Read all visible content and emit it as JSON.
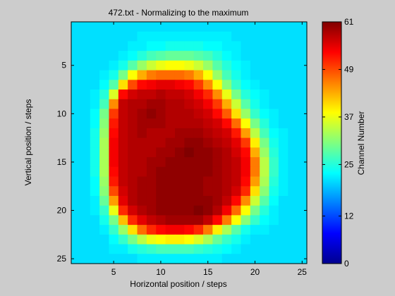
{
  "chart_data": {
    "type": "heatmap",
    "title": "472.txt - Normalizing to the maximum",
    "xlabel": "Horizontal position / steps",
    "ylabel": "Vertical position / steps",
    "colorbar_label": "Channel Number",
    "x_ticks": [
      5,
      10,
      15,
      20,
      25
    ],
    "y_ticks": [
      5,
      10,
      15,
      20,
      25
    ],
    "colorbar_ticks": [
      0,
      12,
      25,
      37,
      49,
      61
    ],
    "clim": [
      0,
      61
    ],
    "grid_cols": 25,
    "grid_rows": 25,
    "colormap": "jet",
    "grid": false,
    "values": [
      [
        21,
        21,
        21,
        21,
        21,
        21,
        21,
        21,
        21,
        21,
        21,
        21,
        21,
        21,
        21,
        21,
        21,
        21,
        21,
        21,
        21,
        21,
        21,
        21,
        21
      ],
      [
        21,
        21,
        21,
        21,
        21,
        21,
        21,
        22,
        22,
        22,
        22,
        22,
        22,
        22,
        22,
        22,
        22,
        21,
        21,
        21,
        21,
        21,
        21,
        21,
        21
      ],
      [
        21,
        21,
        21,
        21,
        21,
        21,
        22,
        22,
        23,
        23,
        24,
        24,
        24,
        24,
        23,
        23,
        22,
        22,
        21,
        21,
        21,
        21,
        21,
        21,
        21
      ],
      [
        21,
        21,
        21,
        21,
        21,
        22,
        23,
        25,
        27,
        28,
        29,
        29,
        29,
        28,
        27,
        25,
        23,
        22,
        21,
        21,
        21,
        21,
        21,
        21,
        21
      ],
      [
        21,
        21,
        21,
        21,
        22,
        24,
        28,
        32,
        35,
        37,
        38,
        38,
        37,
        35,
        32,
        28,
        25,
        23,
        22,
        21,
        21,
        21,
        21,
        21,
        21
      ],
      [
        21,
        21,
        21,
        22,
        24,
        30,
        38,
        43,
        46,
        47,
        47,
        47,
        46,
        43,
        38,
        32,
        27,
        24,
        22,
        21,
        21,
        21,
        21,
        21,
        21
      ],
      [
        21,
        21,
        21,
        23,
        28,
        40,
        49,
        53,
        54,
        55,
        55,
        54,
        53,
        50,
        45,
        38,
        31,
        26,
        23,
        22,
        21,
        21,
        21,
        21,
        21
      ],
      [
        21,
        21,
        22,
        25,
        36,
        53,
        56,
        57,
        57,
        58,
        57,
        57,
        56,
        54,
        51,
        45,
        37,
        30,
        25,
        23,
        22,
        21,
        21,
        21,
        21
      ],
      [
        21,
        21,
        22,
        27,
        45,
        57,
        58,
        58,
        59,
        59,
        58,
        58,
        57,
        56,
        54,
        50,
        43,
        35,
        28,
        24,
        22,
        21,
        21,
        21,
        21
      ],
      [
        21,
        21,
        23,
        30,
        50,
        57,
        58,
        59,
        60,
        59,
        58,
        58,
        58,
        57,
        56,
        53,
        48,
        40,
        32,
        26,
        23,
        22,
        21,
        21,
        21
      ],
      [
        21,
        21,
        23,
        31,
        52,
        57,
        58,
        59,
        59,
        59,
        58,
        58,
        58,
        58,
        57,
        56,
        53,
        47,
        38,
        30,
        25,
        22,
        21,
        21,
        21
      ],
      [
        21,
        21,
        24,
        32,
        53,
        57,
        58,
        59,
        58,
        58,
        58,
        59,
        59,
        59,
        58,
        57,
        56,
        52,
        44,
        34,
        27,
        23,
        22,
        21,
        21
      ],
      [
        21,
        21,
        24,
        33,
        54,
        57,
        58,
        58,
        58,
        58,
        59,
        59,
        60,
        60,
        59,
        58,
        57,
        55,
        50,
        39,
        30,
        24,
        22,
        21,
        21
      ],
      [
        21,
        21,
        24,
        33,
        54,
        57,
        58,
        58,
        58,
        59,
        59,
        60,
        61,
        60,
        60,
        59,
        58,
        56,
        53,
        43,
        32,
        25,
        22,
        21,
        21
      ],
      [
        21,
        21,
        24,
        33,
        54,
        57,
        58,
        58,
        59,
        59,
        60,
        60,
        60,
        60,
        60,
        59,
        58,
        57,
        54,
        46,
        34,
        26,
        22,
        21,
        21
      ],
      [
        21,
        21,
        24,
        33,
        53,
        57,
        58,
        58,
        59,
        60,
        60,
        60,
        60,
        60,
        60,
        59,
        58,
        57,
        54,
        46,
        34,
        26,
        22,
        21,
        21
      ],
      [
        21,
        21,
        23,
        32,
        52,
        57,
        58,
        59,
        59,
        60,
        60,
        60,
        60,
        60,
        59,
        59,
        58,
        57,
        53,
        44,
        33,
        25,
        22,
        21,
        21
      ],
      [
        21,
        21,
        23,
        31,
        49,
        56,
        58,
        59,
        59,
        60,
        60,
        60,
        60,
        60,
        59,
        59,
        58,
        56,
        51,
        40,
        31,
        24,
        22,
        21,
        21
      ],
      [
        21,
        21,
        22,
        29,
        44,
        55,
        58,
        59,
        59,
        60,
        60,
        60,
        60,
        60,
        60,
        59,
        57,
        53,
        45,
        35,
        28,
        23,
        21,
        21,
        21
      ],
      [
        21,
        21,
        22,
        26,
        37,
        51,
        56,
        58,
        59,
        60,
        60,
        60,
        60,
        61,
        60,
        58,
        54,
        47,
        38,
        30,
        25,
        22,
        21,
        21,
        21
      ],
      [
        21,
        21,
        21,
        24,
        30,
        42,
        51,
        55,
        57,
        58,
        59,
        59,
        59,
        59,
        57,
        53,
        46,
        38,
        31,
        26,
        23,
        22,
        21,
        21,
        21
      ],
      [
        21,
        21,
        21,
        22,
        26,
        32,
        40,
        47,
        51,
        53,
        54,
        54,
        53,
        51,
        46,
        39,
        33,
        28,
        24,
        22,
        22,
        21,
        21,
        21,
        21
      ],
      [
        21,
        21,
        21,
        21,
        23,
        26,
        30,
        34,
        37,
        38,
        39,
        39,
        38,
        36,
        33,
        29,
        26,
        24,
        22,
        21,
        21,
        21,
        21,
        21,
        21
      ],
      [
        21,
        21,
        21,
        21,
        22,
        22,
        24,
        25,
        26,
        27,
        27,
        27,
        27,
        26,
        25,
        24,
        23,
        22,
        21,
        21,
        21,
        21,
        21,
        21,
        21
      ],
      [
        21,
        21,
        21,
        21,
        21,
        21,
        21,
        22,
        22,
        22,
        22,
        22,
        22,
        22,
        22,
        22,
        21,
        21,
        21,
        21,
        21,
        21,
        21,
        21,
        21
      ]
    ]
  }
}
